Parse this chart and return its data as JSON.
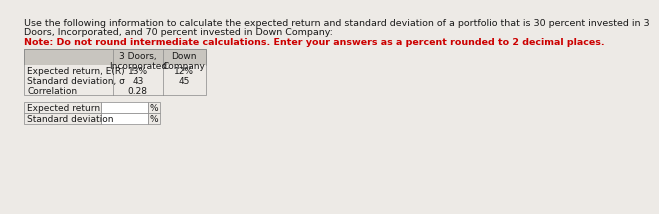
{
  "title_line1": "Use the following information to calculate the expected return and standard deviation of a portfolio that is 30 percent invested in 3",
  "title_line2": "Doors, Incorporated, and 70 percent invested in Down Company:",
  "note": "Note: Do not round intermediate calculations. Enter your answers as a percent rounded to 2 decimal places.",
  "table1_header_col1": "3 Doors,\nIncorporated",
  "table1_header_col2": "Down\nCompany",
  "table1_rows": [
    [
      "Expected return, E(R)",
      "13%",
      "12%"
    ],
    [
      "Standard deviation, σ",
      "43",
      "45"
    ],
    [
      "Correlation",
      "0.28",
      ""
    ]
  ],
  "table2_rows": [
    [
      "Expected return",
      "%"
    ],
    [
      "Standard deviation",
      "%"
    ]
  ],
  "bg_color": "#edeae6",
  "header_bg": "#c8c5bf",
  "input_box_color": "#ffffff",
  "border_color": "#888888",
  "text_color": "#1a1a1a",
  "note_color": "#cc0000",
  "font_size": 6.8,
  "small_font": 6.5
}
